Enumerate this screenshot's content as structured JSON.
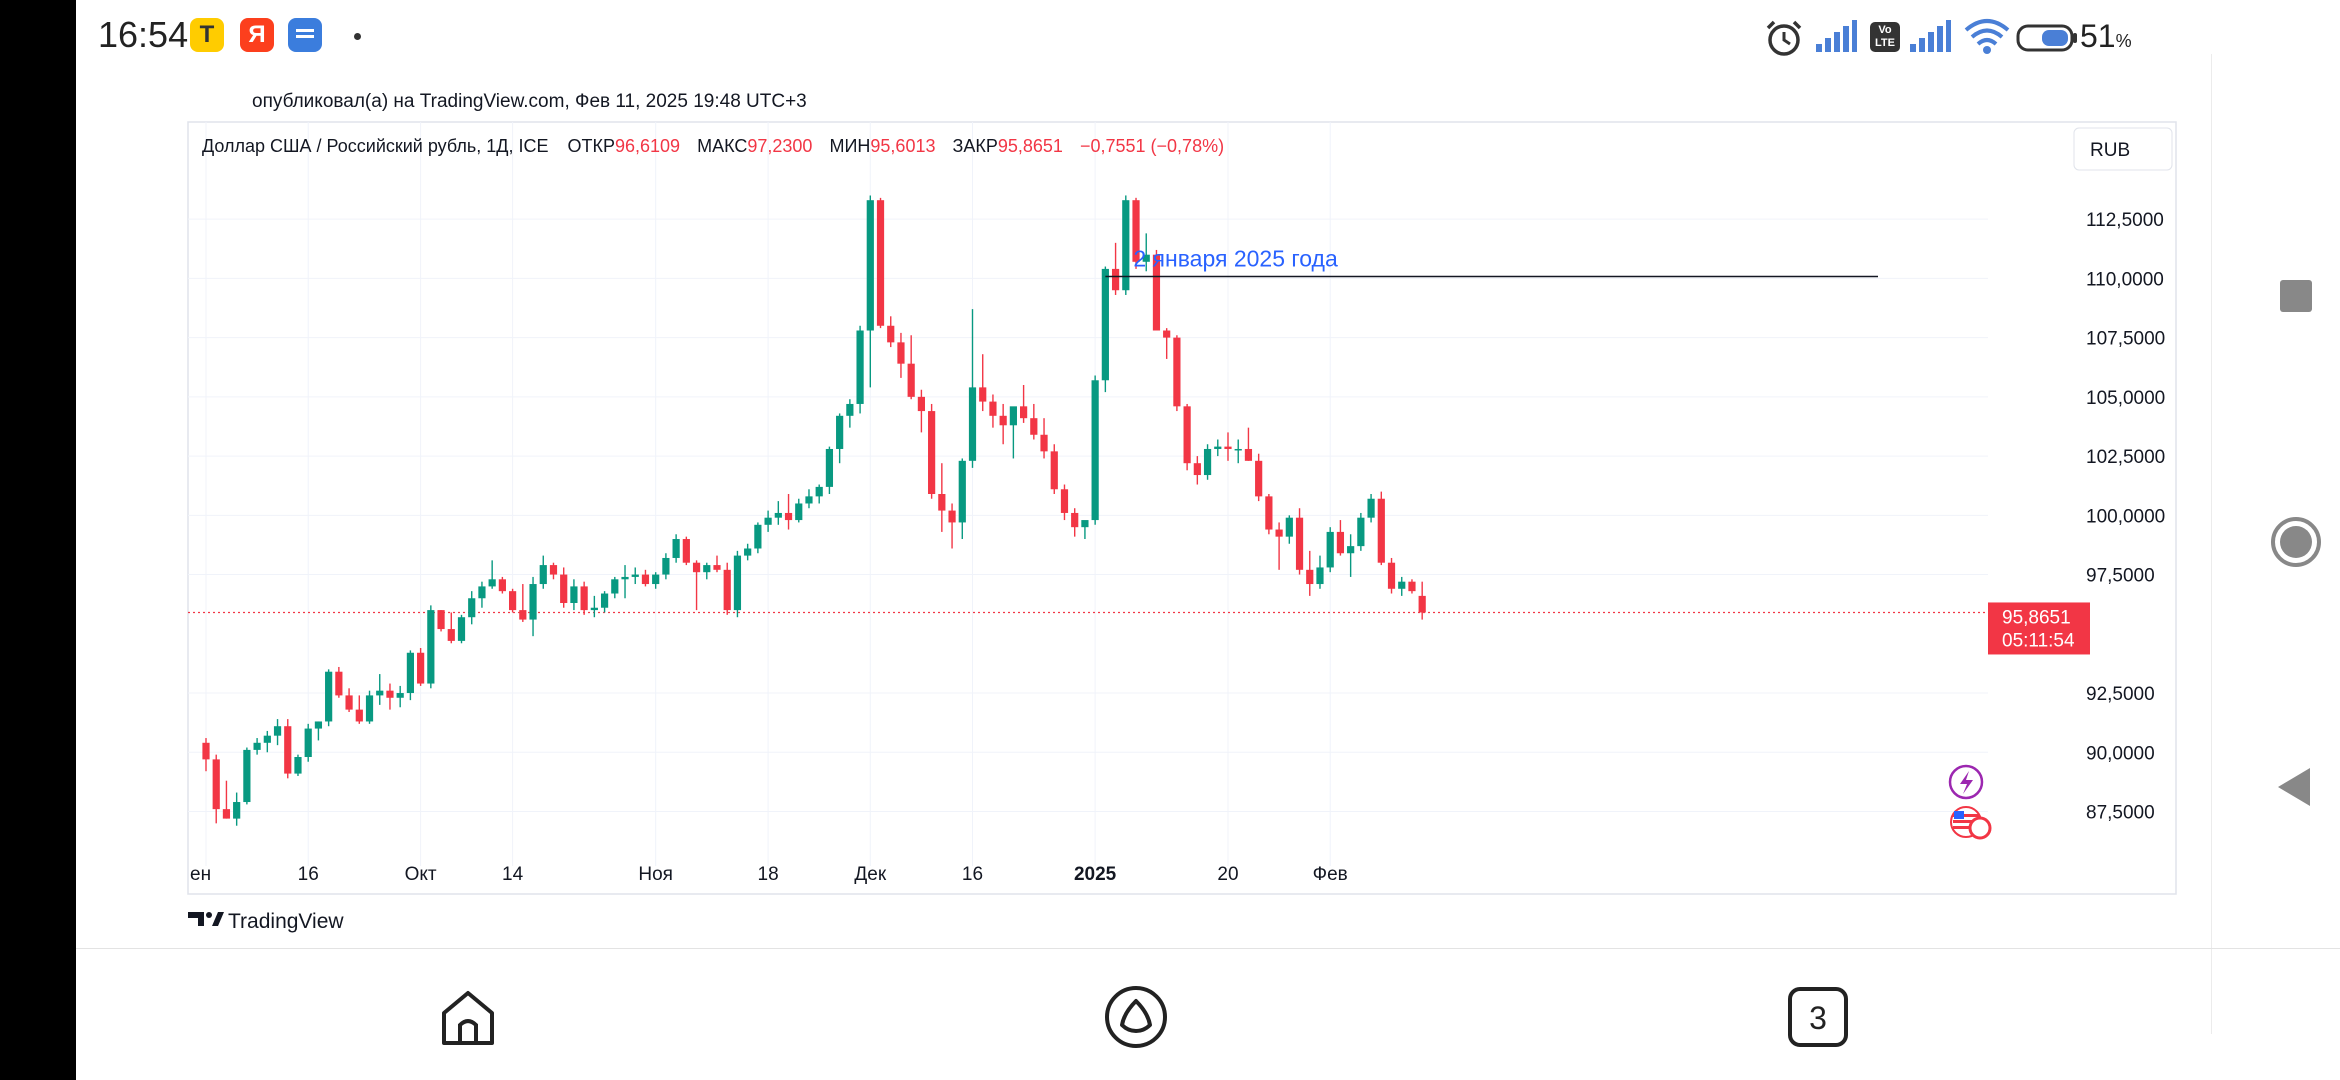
{
  "status_bar": {
    "time": "16:54",
    "apps": [
      {
        "icon": "tinkoff-app-icon",
        "letter": "Т",
        "color": "#FFCC00"
      },
      {
        "icon": "yandex-app-icon",
        "letter": "Я",
        "color": "#FC3F1D"
      },
      {
        "icon": "messages-app-icon",
        "letter": "",
        "color": "#3B7DDD"
      }
    ],
    "battery_percent": "51",
    "battery_unit": "%",
    "volte_label": "Vo LTE"
  },
  "tradingview": {
    "published": "опубликовал(а) на TradingView.com, Фев 11, 2025 19:48 UTC+3",
    "symbol": "Доллар США / Российский рубль, 1Д, ICE",
    "ohlc": {
      "open_label": "ОТКР",
      "open": "96,6109",
      "high_label": "МАКС",
      "high": "97,2300",
      "low_label": "МИН",
      "low": "95,6013",
      "close_label": "ЗАКР",
      "close": "95,8651",
      "change": "−0,7551 (−0,78%)"
    },
    "currency": "RUB",
    "price_label": "95,8651",
    "countdown": "05:11:54",
    "annotation": "2 января 2025 года",
    "brand": "TradingView"
  },
  "colors": {
    "up": "#089981",
    "down": "#F23645",
    "annotation": "#2962FF",
    "grid": "#F0F3FA",
    "text": "#131722"
  },
  "chart_data": {
    "type": "candlestick",
    "title": "Доллар США / Российский рубль, 1Д, ICE",
    "ylim": [
      85.2,
      116.6
    ],
    "y_ticks": [
      {
        "v": 87.5,
        "label": "87,5000"
      },
      {
        "v": 90,
        "label": "90,0000"
      },
      {
        "v": 92.5,
        "label": "92,5000"
      },
      {
        "v": 97.5,
        "label": "97,5000"
      },
      {
        "v": 100,
        "label": "100,0000"
      },
      {
        "v": 102.5,
        "label": "102,5000"
      },
      {
        "v": 105,
        "label": "105,0000"
      },
      {
        "v": 107.5,
        "label": "107,5000"
      },
      {
        "v": 110,
        "label": "110,0000"
      },
      {
        "v": 112.5,
        "label": "112,5000"
      }
    ],
    "x_ticks": [
      {
        "i": 0,
        "label": "ен"
      },
      {
        "i": 10,
        "label": "16"
      },
      {
        "i": 21,
        "label": "Окт"
      },
      {
        "i": 30,
        "label": "14"
      },
      {
        "i": 44,
        "label": "Ноя"
      },
      {
        "i": 55,
        "label": "18"
      },
      {
        "i": 65,
        "label": "Дек"
      },
      {
        "i": 75,
        "label": "16"
      },
      {
        "i": 87,
        "label": "2025"
      },
      {
        "i": 100,
        "label": "20"
      },
      {
        "i": 110,
        "label": "Фев"
      }
    ],
    "annotation_index": 88,
    "candles": [
      [
        90.4,
        90.6,
        89.2,
        89.7
      ],
      [
        89.7,
        89.9,
        87.0,
        87.6
      ],
      [
        87.6,
        88.8,
        87.2,
        87.2
      ],
      [
        87.2,
        88.3,
        86.9,
        87.9
      ],
      [
        87.9,
        90.2,
        87.8,
        90.1
      ],
      [
        90.1,
        90.6,
        89.9,
        90.4
      ],
      [
        90.4,
        90.9,
        90.0,
        90.7
      ],
      [
        90.7,
        91.4,
        90.3,
        91.1
      ],
      [
        91.1,
        91.4,
        88.9,
        89.1
      ],
      [
        89.1,
        89.9,
        89.0,
        89.8
      ],
      [
        89.8,
        91.2,
        89.6,
        91.0
      ],
      [
        91.0,
        91.3,
        90.5,
        91.3
      ],
      [
        91.3,
        93.5,
        91.1,
        93.4
      ],
      [
        93.4,
        93.6,
        92.3,
        92.4
      ],
      [
        92.4,
        92.7,
        91.7,
        91.8
      ],
      [
        91.8,
        92.4,
        91.2,
        91.3
      ],
      [
        91.3,
        92.6,
        91.2,
        92.4
      ],
      [
        92.4,
        93.3,
        92.0,
        92.6
      ],
      [
        92.6,
        92.9,
        91.8,
        92.3
      ],
      [
        92.3,
        92.8,
        91.9,
        92.5
      ],
      [
        92.5,
        94.3,
        92.2,
        94.2
      ],
      [
        94.2,
        94.4,
        92.8,
        92.9
      ],
      [
        92.9,
        96.2,
        92.7,
        96.0
      ],
      [
        96.0,
        96.0,
        95.1,
        95.2
      ],
      [
        95.2,
        95.9,
        94.6,
        94.7
      ],
      [
        94.7,
        95.8,
        94.6,
        95.7
      ],
      [
        95.7,
        96.8,
        95.4,
        96.5
      ],
      [
        96.5,
        97.2,
        96.1,
        97.0
      ],
      [
        97.0,
        98.1,
        96.9,
        97.3
      ],
      [
        97.3,
        97.4,
        96.7,
        96.8
      ],
      [
        96.8,
        96.9,
        95.9,
        96.0
      ],
      [
        96.0,
        97.1,
        95.5,
        95.6
      ],
      [
        95.6,
        97.4,
        94.9,
        97.1
      ],
      [
        97.1,
        98.3,
        96.9,
        97.9
      ],
      [
        97.9,
        98.0,
        97.3,
        97.5
      ],
      [
        97.5,
        97.8,
        96.1,
        96.3
      ],
      [
        96.3,
        97.3,
        96.0,
        97.0
      ],
      [
        97.0,
        97.2,
        95.8,
        96.0
      ],
      [
        96.0,
        96.6,
        95.7,
        96.1
      ],
      [
        96.1,
        96.8,
        95.9,
        96.7
      ],
      [
        96.7,
        97.4,
        96.5,
        97.3
      ],
      [
        97.3,
        97.9,
        96.5,
        97.4
      ],
      [
        97.4,
        97.8,
        97.1,
        97.5
      ],
      [
        97.5,
        97.7,
        97.0,
        97.1
      ],
      [
        97.1,
        97.6,
        96.9,
        97.5
      ],
      [
        97.5,
        98.4,
        97.3,
        98.2
      ],
      [
        98.2,
        99.2,
        98.0,
        99.0
      ],
      [
        99.0,
        99.1,
        97.9,
        98.0
      ],
      [
        98.0,
        98.1,
        96.0,
        97.6
      ],
      [
        97.6,
        98.0,
        97.3,
        97.9
      ],
      [
        97.9,
        98.3,
        97.6,
        97.7
      ],
      [
        97.7,
        98.0,
        95.8,
        96.0
      ],
      [
        96.0,
        98.5,
        95.7,
        98.3
      ],
      [
        98.3,
        98.8,
        98.1,
        98.6
      ],
      [
        98.6,
        99.7,
        98.4,
        99.6
      ],
      [
        99.6,
        100.2,
        99.3,
        99.9
      ],
      [
        99.9,
        100.6,
        99.6,
        100.1
      ],
      [
        100.1,
        100.9,
        99.4,
        99.8
      ],
      [
        99.8,
        100.7,
        99.7,
        100.5
      ],
      [
        100.5,
        101.1,
        100.3,
        100.8
      ],
      [
        100.8,
        101.3,
        100.5,
        101.2
      ],
      [
        101.2,
        102.9,
        100.9,
        102.8
      ],
      [
        102.8,
        104.3,
        102.2,
        104.2
      ],
      [
        104.2,
        104.9,
        103.7,
        104.7
      ],
      [
        104.7,
        108.0,
        104.3,
        107.8
      ],
      [
        107.8,
        113.5,
        105.4,
        113.3
      ],
      [
        113.3,
        113.4,
        107.9,
        108.0
      ],
      [
        108.0,
        108.4,
        107.1,
        107.3
      ],
      [
        107.3,
        107.7,
        105.8,
        106.4
      ],
      [
        106.4,
        107.6,
        104.9,
        105.0
      ],
      [
        105.0,
        105.3,
        103.5,
        104.4
      ],
      [
        104.4,
        104.7,
        100.7,
        100.9
      ],
      [
        100.9,
        102.2,
        99.3,
        100.2
      ],
      [
        100.2,
        100.5,
        98.6,
        99.7
      ],
      [
        99.7,
        102.4,
        99.0,
        102.3
      ],
      [
        102.3,
        108.7,
        102.0,
        105.4
      ],
      [
        105.4,
        106.8,
        104.4,
        104.8
      ],
      [
        104.8,
        105.1,
        103.7,
        104.2
      ],
      [
        104.2,
        104.7,
        103.0,
        103.8
      ],
      [
        103.8,
        104.5,
        102.4,
        104.6
      ],
      [
        104.6,
        105.5,
        103.9,
        104.1
      ],
      [
        104.1,
        104.7,
        103.2,
        103.4
      ],
      [
        103.4,
        104.1,
        102.4,
        102.7
      ],
      [
        102.7,
        103.0,
        100.9,
        101.1
      ],
      [
        101.1,
        101.3,
        99.8,
        100.1
      ],
      [
        100.1,
        100.3,
        99.1,
        99.5
      ],
      [
        99.5,
        99.7,
        99.0,
        99.8
      ],
      [
        99.8,
        105.9,
        99.6,
        105.7
      ],
      [
        105.7,
        110.5,
        105.2,
        110.4
      ],
      [
        110.4,
        111.5,
        109.3,
        109.5
      ],
      [
        109.5,
        113.5,
        109.3,
        113.3
      ],
      [
        113.3,
        113.4,
        110.4,
        110.7
      ],
      [
        110.7,
        111.9,
        110.3,
        111.0
      ],
      [
        111.0,
        111.2,
        107.8,
        107.8
      ],
      [
        107.8,
        107.9,
        106.6,
        107.5
      ],
      [
        107.5,
        107.6,
        104.4,
        104.6
      ],
      [
        104.6,
        104.7,
        101.9,
        102.2
      ],
      [
        102.2,
        102.5,
        101.3,
        101.7
      ],
      [
        101.7,
        103.0,
        101.5,
        102.8
      ],
      [
        102.8,
        103.2,
        102.5,
        102.9
      ],
      [
        102.9,
        103.5,
        102.3,
        102.8
      ],
      [
        102.8,
        103.2,
        102.2,
        102.8
      ],
      [
        102.8,
        103.7,
        102.3,
        102.3
      ],
      [
        102.3,
        102.6,
        100.6,
        100.8
      ],
      [
        100.8,
        100.9,
        99.2,
        99.4
      ],
      [
        99.4,
        99.7,
        97.7,
        99.1
      ],
      [
        99.1,
        100.0,
        98.8,
        99.9
      ],
      [
        99.9,
        100.3,
        97.5,
        97.7
      ],
      [
        97.7,
        98.5,
        96.6,
        97.1
      ],
      [
        97.1,
        98.3,
        96.9,
        97.8
      ],
      [
        97.8,
        99.5,
        97.6,
        99.3
      ],
      [
        99.3,
        99.8,
        98.3,
        98.4
      ],
      [
        98.4,
        99.2,
        97.4,
        98.7
      ],
      [
        98.7,
        100.1,
        98.5,
        99.9
      ],
      [
        99.9,
        100.9,
        99.7,
        100.7
      ],
      [
        100.7,
        101.0,
        97.9,
        98.0
      ],
      [
        98.0,
        98.2,
        96.7,
        96.9
      ],
      [
        96.9,
        97.4,
        96.6,
        97.2
      ],
      [
        97.2,
        97.3,
        96.7,
        96.8
      ],
      [
        96.6,
        97.2,
        95.6,
        95.9
      ]
    ]
  }
}
